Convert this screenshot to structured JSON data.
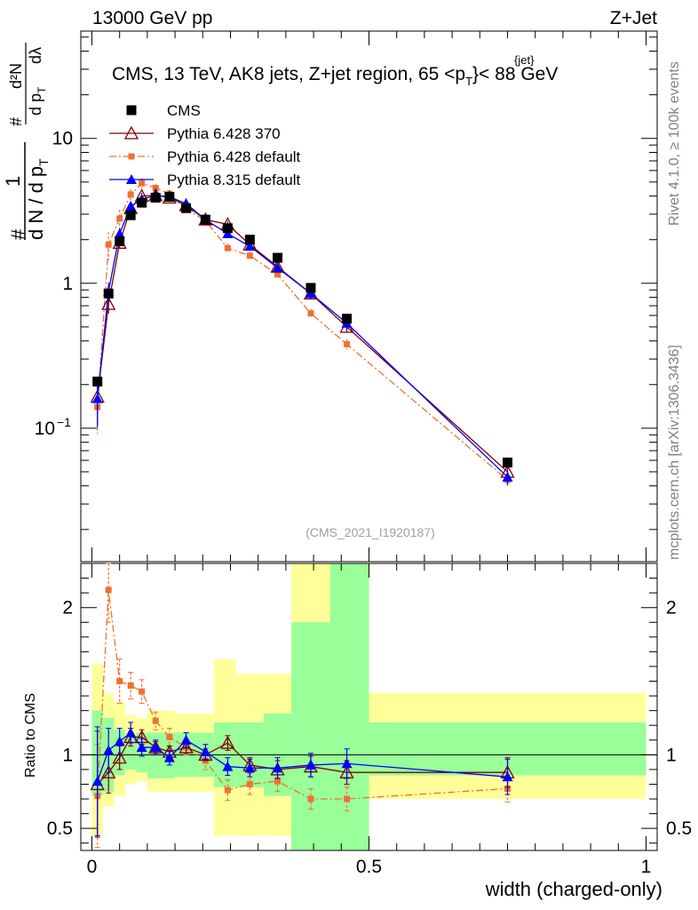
{
  "header": {
    "left": "13000 GeV pp",
    "right": "Z+Jet",
    "title_main": "CMS, 13 TeV, AK8 jets, Z+jet region, 65 <p",
    "title_sup": "{jet}",
    "title_sub": "T",
    "title_end": "}< 88 GeV"
  },
  "side_text": {
    "rivet": "Rivet 4.1.0, ≥ 100k events",
    "mcplots": "mcplots.cern.ch [arXiv:1306.3436]"
  },
  "watermark": "(CMS_2021_I1920187)",
  "y_label_top": {
    "hash1": "#",
    "one": "1",
    "denom": "d N / d p",
    "denom_sub": "T",
    "hash2": "#",
    "frac_num": "d²N",
    "frac_den": "d p",
    "frac_den_sub": "T",
    "dlambda": "dλ"
  },
  "y_label_bottom": "Ratio to CMS",
  "x_label": "width (charged-only)",
  "chart_data": {
    "type": "scatter",
    "xlim": [
      -0.02,
      1.02
    ],
    "top_ylim_log": [
      0.012,
      55
    ],
    "bottom_ylim": [
      0.35,
      2.3
    ],
    "x_ticks": [
      {
        "v": 0,
        "l": "0"
      },
      {
        "v": 0.5,
        "l": "0.5"
      },
      {
        "v": 1,
        "l": "1"
      }
    ],
    "top_y_ticks": [
      {
        "v": 0.1,
        "l": "10",
        "sup": "−1"
      },
      {
        "v": 1,
        "l": "1"
      },
      {
        "v": 10,
        "l": "10"
      }
    ],
    "bottom_y_ticks": [
      {
        "v": 0.5,
        "l": "0.5"
      },
      {
        "v": 1,
        "l": "1"
      },
      {
        "v": 2,
        "l": "2"
      }
    ],
    "x": [
      0.01,
      0.03,
      0.05,
      0.07,
      0.09,
      0.115,
      0.14,
      0.17,
      0.205,
      0.245,
      0.285,
      0.335,
      0.395,
      0.46,
      0.75
    ],
    "bins": [
      [
        0,
        0.02
      ],
      [
        0.02,
        0.04
      ],
      [
        0.04,
        0.06
      ],
      [
        0.06,
        0.08
      ],
      [
        0.08,
        0.1
      ],
      [
        0.1,
        0.13
      ],
      [
        0.13,
        0.15
      ],
      [
        0.15,
        0.19
      ],
      [
        0.19,
        0.22
      ],
      [
        0.22,
        0.26
      ],
      [
        0.26,
        0.31
      ],
      [
        0.31,
        0.36
      ],
      [
        0.36,
        0.43
      ],
      [
        0.43,
        0.5
      ],
      [
        0.5,
        1.0
      ]
    ],
    "band_green": [
      [
        0.72,
        1.3
      ],
      [
        0.75,
        1.25
      ],
      [
        0.86,
        1.17
      ],
      [
        0.9,
        1.12
      ],
      [
        0.88,
        1.15
      ],
      [
        0.84,
        1.15
      ],
      [
        0.84,
        1.15
      ],
      [
        0.85,
        1.15
      ],
      [
        0.85,
        1.15
      ],
      [
        0.78,
        1.22
      ],
      [
        0.78,
        1.22
      ],
      [
        0.72,
        1.28
      ],
      [
        0.3,
        1.9
      ],
      [
        0.3,
        2.6
      ],
      [
        0.86,
        1.22
      ]
    ],
    "band_yellow": [
      [
        0.45,
        1.62
      ],
      [
        0.65,
        1.42
      ],
      [
        0.72,
        1.36
      ],
      [
        0.8,
        1.27
      ],
      [
        0.82,
        1.25
      ],
      [
        0.75,
        1.3
      ],
      [
        0.75,
        1.3
      ],
      [
        0.75,
        1.28
      ],
      [
        0.75,
        1.28
      ],
      [
        0.45,
        1.65
      ],
      [
        0.45,
        1.55
      ],
      [
        0.45,
        1.55
      ],
      [
        0.2,
        2.5
      ],
      [
        0.2,
        3.0
      ],
      [
        0.7,
        1.42
      ]
    ],
    "series": [
      {
        "name": "CMS",
        "color": "#000000",
        "marker": "square",
        "line": "none",
        "values": [
          0.21,
          0.85,
          1.95,
          2.95,
          3.6,
          3.9,
          3.95,
          3.3,
          2.75,
          2.4,
          2.0,
          1.5,
          0.93,
          0.57,
          0.058
        ],
        "ratio": [
          1,
          1,
          1,
          1,
          1,
          1,
          1,
          1,
          1,
          1,
          1,
          1,
          1,
          1,
          1
        ]
      },
      {
        "name": "Pythia 6.428 370",
        "color": "#800000",
        "marker": "triangle-open",
        "line": "solid",
        "values": [
          0.165,
          0.72,
          1.9,
          3.3,
          4.0,
          4.05,
          3.9,
          3.45,
          2.75,
          2.55,
          1.85,
          1.3,
          0.85,
          0.5,
          0.05
        ],
        "ratio": [
          0.8,
          0.88,
          0.98,
          1.12,
          1.12,
          1.05,
          1.02,
          1.05,
          1.0,
          1.08,
          0.93,
          0.9,
          0.92,
          0.88,
          0.88
        ],
        "ratio_err": [
          0.36,
          0.14,
          0.08,
          0.06,
          0.05,
          0.04,
          0.04,
          0.04,
          0.04,
          0.05,
          0.05,
          0.06,
          0.07,
          0.08,
          0.1
        ]
      },
      {
        "name": "Pythia 6.428 default",
        "color": "#f07030",
        "marker": "square-small",
        "line": "dashdot",
        "values": [
          0.14,
          1.85,
          2.8,
          4.1,
          4.9,
          4.55,
          4.15,
          3.25,
          2.7,
          1.75,
          1.55,
          1.15,
          0.62,
          0.38,
          0.044
        ],
        "ratio": [
          0.72,
          2.12,
          1.5,
          1.47,
          1.43,
          1.23,
          1.12,
          1.05,
          0.96,
          0.76,
          0.8,
          0.82,
          0.7,
          0.7,
          0.77
        ],
        "ratio_err": [
          0.35,
          0.22,
          0.15,
          0.09,
          0.08,
          0.06,
          0.06,
          0.05,
          0.06,
          0.07,
          0.07,
          0.07,
          0.07,
          0.08,
          0.09
        ]
      },
      {
        "name": "Pythia 8.315 default",
        "color": "#0000ff",
        "marker": "triangle",
        "line": "solid",
        "values": [
          0.16,
          0.88,
          2.2,
          3.4,
          3.8,
          4.05,
          3.95,
          3.55,
          2.75,
          2.2,
          1.8,
          1.28,
          0.85,
          0.53,
          0.046
        ],
        "ratio": [
          0.82,
          1.03,
          1.09,
          1.15,
          1.05,
          1.05,
          0.98,
          1.1,
          1.02,
          0.92,
          0.91,
          0.91,
          0.93,
          0.94,
          0.85
        ],
        "ratio_err": [
          0.37,
          0.15,
          0.09,
          0.07,
          0.06,
          0.05,
          0.05,
          0.05,
          0.05,
          0.06,
          0.06,
          0.07,
          0.08,
          0.1,
          0.12
        ]
      }
    ]
  }
}
